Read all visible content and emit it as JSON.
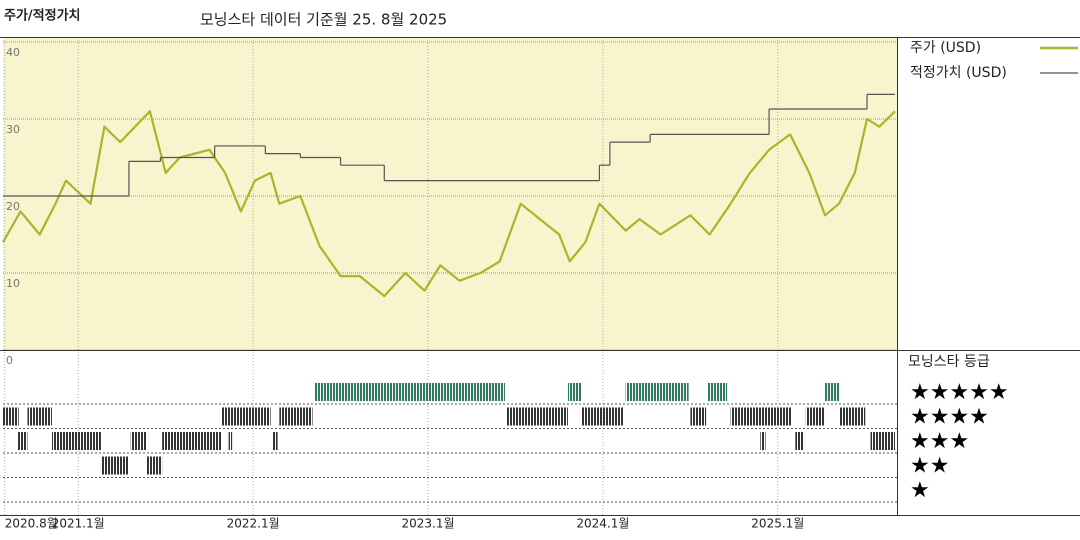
{
  "chart_data": [
    {
      "type": "line",
      "title": "주가/적정가치",
      "subtitle": "모닝스타 데이터 기준월 25. 8월 2025",
      "xlim": [
        2020.57,
        2025.67
      ],
      "xticks": [
        {
          "value": 2020.58,
          "label": "2020.8월"
        },
        {
          "value": 2021,
          "label": "2021.1월"
        },
        {
          "value": 2022,
          "label": "2022.1월"
        },
        {
          "value": 2023,
          "label": "2023.1월"
        },
        {
          "value": 2024,
          "label": "2024.1월"
        },
        {
          "value": 2025,
          "label": "2025.1월"
        }
      ],
      "ylim": [
        0,
        40
      ],
      "yticks": [
        0,
        10,
        20,
        30,
        40
      ],
      "grid": true,
      "series": [
        {
          "name": "주가 (USD)",
          "color": "#a9b52a",
          "x": [
            2020.57,
            2020.67,
            2020.78,
            2020.87,
            2020.93,
            2021.07,
            2021.15,
            2021.24,
            2021.41,
            2021.5,
            2021.58,
            2021.75,
            2021.84,
            2021.93,
            2022.01,
            2022.1,
            2022.15,
            2022.27,
            2022.38,
            2022.5,
            2022.61,
            2022.75,
            2022.87,
            2022.98,
            2023.07,
            2023.18,
            2023.3,
            2023.41,
            2023.53,
            2023.64,
            2023.75,
            2023.81,
            2023.9,
            2023.98,
            2024.13,
            2024.21,
            2024.33,
            2024.5,
            2024.61,
            2024.73,
            2024.84,
            2024.95,
            2025.07,
            2025.18,
            2025.27,
            2025.35,
            2025.44,
            2025.51,
            2025.58,
            2025.67
          ],
          "values": [
            14,
            18,
            15,
            19,
            22,
            19,
            29,
            27,
            31,
            23,
            25,
            26,
            23,
            18,
            22,
            23,
            19,
            20,
            13.5,
            9.6,
            9.6,
            7,
            10,
            7.7,
            11,
            9,
            10,
            11.5,
            19,
            17,
            15,
            11.5,
            14,
            19,
            15.5,
            17,
            15,
            17.5,
            15,
            19,
            23,
            26,
            28,
            23,
            17.5,
            19,
            23,
            30,
            29,
            31
          ]
        },
        {
          "name": "적정가치 (USD)",
          "color": "#555555",
          "step": "after",
          "x": [
            2020.57,
            2021.29,
            2021.47,
            2021.78,
            2022.07,
            2022.27,
            2022.5,
            2022.75,
            2023.98,
            2024.04,
            2024.27,
            2024.95,
            2025.51,
            2025.67
          ],
          "values": [
            20,
            24.5,
            25,
            26.5,
            25.5,
            25,
            24,
            22,
            24,
            27,
            28,
            31.3,
            33.2,
            33.2
          ]
        }
      ]
    },
    {
      "type": "timeline",
      "title": "모닝스타 등급",
      "rating_rows": [
        {
          "value": 5,
          "label": "★★★★★",
          "color": "#2f7a5c"
        },
        {
          "value": 4,
          "label": "★★★★",
          "color": "#333333"
        },
        {
          "value": 3,
          "label": "★★★",
          "color": "#333333"
        },
        {
          "value": 2,
          "label": "★★",
          "color": "#333333"
        },
        {
          "value": 1,
          "label": "★",
          "color": "#333333"
        }
      ],
      "segments": [
        {
          "stars": 4,
          "from": 2020.57,
          "to": 2020.66
        },
        {
          "stars": 3,
          "from": 2020.65,
          "to": 2020.71
        },
        {
          "stars": 4,
          "from": 2020.71,
          "to": 2020.85
        },
        {
          "stars": 3,
          "from": 2020.85,
          "to": 2021.13
        },
        {
          "stars": 2,
          "from": 2021.13,
          "to": 2021.29
        },
        {
          "stars": 3,
          "from": 2021.3,
          "to": 2021.39
        },
        {
          "stars": 2,
          "from": 2021.39,
          "to": 2021.48
        },
        {
          "stars": 3,
          "from": 2021.48,
          "to": 2021.82
        },
        {
          "stars": 4,
          "from": 2021.82,
          "to": 2022.1
        },
        {
          "stars": 3,
          "from": 2021.86,
          "to": 2021.88
        },
        {
          "stars": 3,
          "from": 2022.11,
          "to": 2022.14
        },
        {
          "stars": 4,
          "from": 2022.15,
          "to": 2022.34
        },
        {
          "stars": 5,
          "from": 2022.35,
          "to": 2023.44
        },
        {
          "stars": 4,
          "from": 2023.45,
          "to": 2023.8
        },
        {
          "stars": 5,
          "from": 2023.8,
          "to": 2023.88
        },
        {
          "stars": 4,
          "from": 2023.88,
          "to": 2024.12
        },
        {
          "stars": 5,
          "from": 2024.13,
          "to": 2024.49
        },
        {
          "stars": 4,
          "from": 2024.5,
          "to": 2024.59
        },
        {
          "stars": 5,
          "from": 2024.6,
          "to": 2024.71
        },
        {
          "stars": 4,
          "from": 2024.73,
          "to": 2025.08
        },
        {
          "stars": 3,
          "from": 2024.9,
          "to": 2024.93
        },
        {
          "stars": 3,
          "from": 2025.1,
          "to": 2025.15
        },
        {
          "stars": 4,
          "from": 2025.16,
          "to": 2025.27
        },
        {
          "stars": 5,
          "from": 2025.27,
          "to": 2025.35
        },
        {
          "stars": 4,
          "from": 2025.35,
          "to": 2025.5
        },
        {
          "stars": 3,
          "from": 2025.53,
          "to": 2025.67
        }
      ]
    }
  ]
}
